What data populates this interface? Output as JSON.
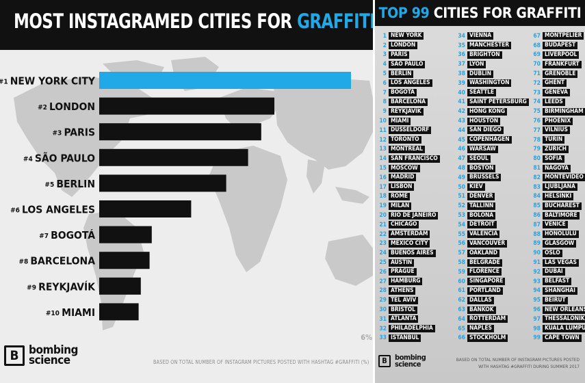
{
  "header": {
    "title_main": "MOST INSTAGRAMED CITIES FOR ",
    "title_accent": "GRAFFITI"
  },
  "colors": {
    "accent": "#21a8e6",
    "bar": "#111111",
    "background": "#ededed"
  },
  "chart_data": {
    "type": "bar",
    "orientation": "horizontal",
    "categories": [
      "NEW YORK CITY",
      "LONDON",
      "PARIS",
      "SÃO PAULO",
      "BERLIN",
      "LOS ANGELES",
      "BOGOTÁ",
      "BARCELONA",
      "REYKJAVÍK",
      "MIAMI"
    ],
    "rank_labels": [
      "#1",
      "#2",
      "#3",
      "#4",
      "#5",
      "#6",
      "#7",
      "#8",
      "#9",
      "#10"
    ],
    "values": [
      5.75,
      4.0,
      3.7,
      3.4,
      2.9,
      2.1,
      1.2,
      1.15,
      0.95,
      0.9
    ],
    "highlight_index": 0,
    "xlim": [
      0,
      6
    ],
    "tick_label": "6%",
    "source_note": "BASED ON TOTAL NUMBER OF INSTAGRAM PICTURES POSTED WITH HASHTAG #GRAFFITI (%)"
  },
  "logo": {
    "mark": "B",
    "line1": "bombing",
    "line2": "science"
  },
  "top99": {
    "title_main": "TOP 99 ",
    "title_accent": "CITIES FOR GRAFFITI",
    "cities": [
      "NEW YORK",
      "LONDON",
      "PARIS",
      "SÃO PAULO",
      "BERLIN",
      "LOS ANGELES",
      "BOGOTÁ",
      "BARCELONA",
      "REYKJAVÍK",
      "MIAMI",
      "DUSSELDORF",
      "TORONTO",
      "MONTREAL",
      "SAN FRANCISCO",
      "MOSCOW",
      "MADRID",
      "LISBON",
      "ROME",
      "MILAN",
      "RIO DE JANEIRO",
      "CHICAGO",
      "AMSTERDAM",
      "MEXICO CITY",
      "BUENOS AIRES",
      "AUSTIN",
      "PRAGUE",
      "HAMBURG",
      "ATHENS",
      "TEL AVIV",
      "BRISTOL",
      "ATLANTA",
      "PHILADELPHIA",
      "ISTANBUL",
      "VIENNA",
      "MANCHESTER",
      "BRIGHTON",
      "LYON",
      "DUBLIN",
      "WASHINGTON",
      "SEATTLE",
      "SAINT PETERSBURG",
      "HONG KONG",
      "HOUSTON",
      "SAN DIEGO",
      "COPENHAGEN",
      "WARSAW",
      "SEOUL",
      "BOSTON",
      "BRUSSELS",
      "KIEV",
      "DENVER",
      "TALLINN",
      "BOLONA",
      "DETROIT",
      "VALENCIA",
      "VANCOUVER",
      "OAKLAND",
      "BELGRADE",
      "FLORENCE",
      "SINGAPORE",
      "PORTLAND",
      "DALLAS",
      "BANKOK",
      "ROTTERDAM",
      "NAPLES",
      "STOCKHOLM",
      "MONTPELIER",
      "BUDAPEST",
      "LIVERPOOL",
      "FRANKFURT",
      "GRENOBLE",
      "GHENT",
      "GENEVA",
      "LEEDS",
      "BIRMINGHAM",
      "PHOENIX",
      "VILNIUS",
      "TURIN",
      "ZURICH",
      "SOFIA",
      "NAGOYA",
      "MONTEVIDEO",
      "LJUBLJANA",
      "HELSINKI",
      "BUCHAREST",
      "BALTIMORE",
      "VENICE",
      "HONOLULU",
      "GLASGOW",
      "OSLO",
      "LAS VEGAS",
      "DUBAI",
      "BELFAST",
      "SHANGHAI",
      "BEIRUT",
      "NEW ORLEANS",
      "THESSALONIKI",
      "KUALA LUMPUR",
      "CAPE TOWN"
    ],
    "footer_line1": "BASED ON TOTAL NUMBER OF INSTAGRAM PICTURES POSTED",
    "footer_line2": "WITH HASHTAG #GRAFFITI DURING SUMMER 2017"
  }
}
